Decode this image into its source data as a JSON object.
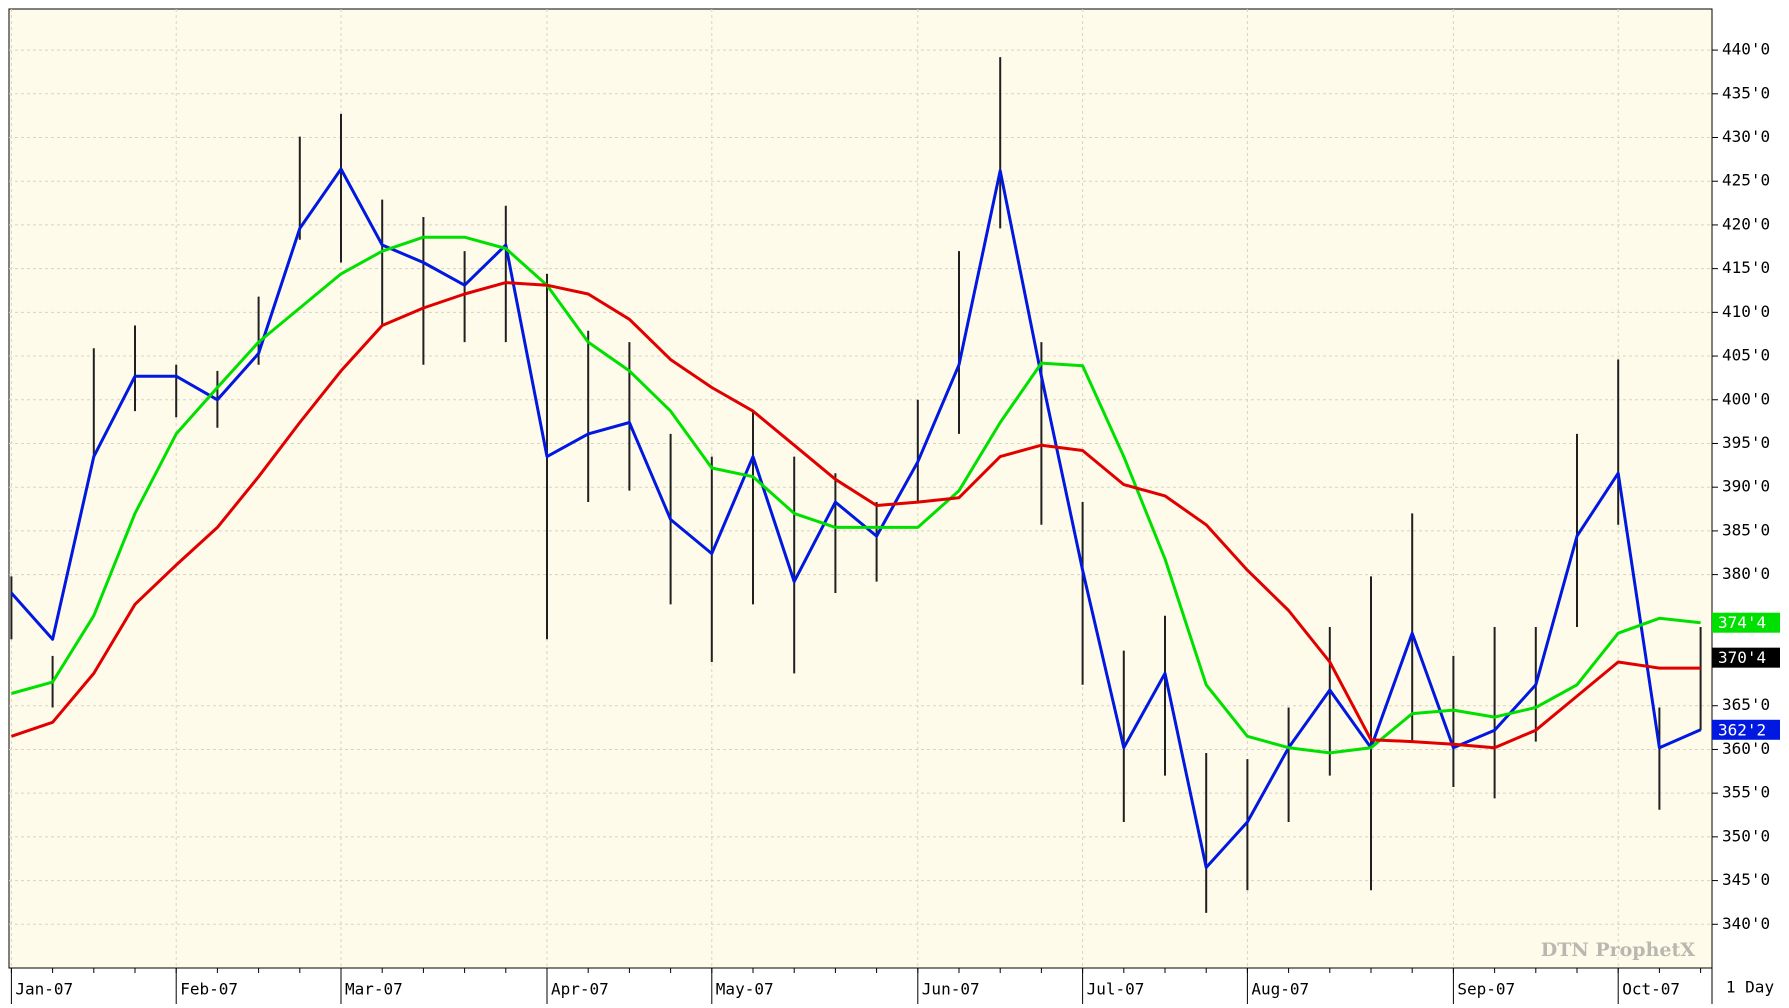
{
  "chart_data": {
    "type": "ohlc",
    "watermark": "DTN ProphetX",
    "interval": "1 Day",
    "categories": [
      "Jan-07",
      null,
      null,
      null,
      "Feb-07",
      null,
      null,
      null,
      "Mar-07",
      null,
      null,
      null,
      null,
      "Apr-07",
      null,
      null,
      null,
      "May-07",
      null,
      null,
      null,
      null,
      "Jun-07",
      null,
      null,
      null,
      "Jul-07",
      null,
      null,
      null,
      "Aug-07",
      null,
      null,
      null,
      null,
      "Sep-07",
      null,
      null,
      null,
      "Oct-07",
      null,
      null
    ],
    "high": [
      379.8,
      370.7,
      405.9,
      408.5,
      404,
      403.3,
      411.8,
      430.1,
      432.7,
      422.9,
      420.9,
      417,
      422.2,
      414.4,
      407.9,
      406.6,
      396.1,
      393.5,
      398.7,
      393.5,
      391.6,
      388.3,
      400,
      417,
      439.2,
      406.6,
      388.3,
      371.3,
      375.3,
      359.6,
      358.9,
      364.8,
      374,
      379.8,
      387,
      370.7,
      374,
      374,
      396.1,
      404.6,
      364.8,
      374
    ],
    "low": [
      372.6,
      364.8,
      393.5,
      398.7,
      398,
      396.8,
      404,
      418.3,
      415.7,
      408.5,
      404,
      406.6,
      406.6,
      372.6,
      388.3,
      389.6,
      376.6,
      370,
      376.6,
      368.7,
      377.9,
      379.2,
      388.3,
      396.1,
      419.6,
      385.7,
      367.4,
      351.7,
      357,
      341.3,
      343.9,
      351.7,
      357,
      343.9,
      360.9,
      355.7,
      354.4,
      360.9,
      374,
      385.7,
      353.1,
      362.2
    ],
    "bar_color": "#202020",
    "series": [
      {
        "name": "MA short",
        "color": "#0018e0",
        "values": [
          377.9,
          372.6,
          393.5,
          402.7,
          402.7,
          400,
          405.3,
          419.6,
          426.4,
          417.7,
          415.7,
          413.1,
          417.7,
          393.5,
          396.1,
          397.4,
          386.3,
          382.4,
          393.5,
          379.2,
          388.3,
          384.4,
          392.9,
          404,
          426.2,
          402.7,
          380.5,
          360.2,
          368.7,
          346.5,
          351.7,
          360.2,
          366.8,
          360.2,
          373.3,
          360.2,
          362.2,
          367.4,
          384.4,
          391.6,
          360.2,
          362.25
        ],
        "last_label": "362'2"
      },
      {
        "name": "MA medium",
        "color": "#00e000",
        "values": [
          366.4,
          367.7,
          375.3,
          387,
          396.1,
          401.4,
          406.6,
          410.5,
          414.4,
          417,
          418.6,
          418.6,
          417.3,
          413.1,
          406.6,
          403.3,
          398.7,
          392.2,
          391.2,
          387,
          385.4,
          385.4,
          385.4,
          389.6,
          397.4,
          404.2,
          403.9,
          393.5,
          381.8,
          367.4,
          361.5,
          360.2,
          359.6,
          360.2,
          364.1,
          364.5,
          363.7,
          364.8,
          367.4,
          373.3,
          375,
          374.5
        ],
        "last_label": "374'4"
      },
      {
        "name": "MA long",
        "color": "#e00000",
        "values": [
          361.5,
          363.1,
          368.7,
          376.6,
          381.1,
          385.4,
          391.2,
          397.4,
          403.3,
          408.5,
          410.5,
          412.1,
          413.4,
          413.1,
          412.1,
          409.2,
          404.6,
          401.4,
          398.7,
          394.8,
          390.9,
          387.9,
          388.3,
          388.8,
          393.5,
          394.8,
          394.2,
          390.3,
          389,
          385.7,
          380.5,
          375.9,
          370,
          361.1,
          360.9,
          360.6,
          360.2,
          362.2,
          366.1,
          370,
          369.3,
          369.3
        ]
      }
    ],
    "last_price": {
      "value": 370.5,
      "label": "370'4"
    },
    "ylim": [
      335,
      444.7
    ],
    "yticks": [
      {
        "value": 340,
        "label": "340'0"
      },
      {
        "value": 345,
        "label": "345'0"
      },
      {
        "value": 350,
        "label": "350'0"
      },
      {
        "value": 355,
        "label": "355'0"
      },
      {
        "value": 360,
        "label": "360'0"
      },
      {
        "value": 365,
        "label": "365'0"
      },
      {
        "value": 380,
        "label": "380'0"
      },
      {
        "value": 385,
        "label": "385'0"
      },
      {
        "value": 390,
        "label": "390'0"
      },
      {
        "value": 395,
        "label": "395'0"
      },
      {
        "value": 400,
        "label": "400'0"
      },
      {
        "value": 405,
        "label": "405'0"
      },
      {
        "value": 410,
        "label": "410'0"
      },
      {
        "value": 415,
        "label": "415'0"
      },
      {
        "value": 420,
        "label": "420'0"
      },
      {
        "value": 425,
        "label": "425'0"
      },
      {
        "value": 430,
        "label": "430'0"
      },
      {
        "value": 435,
        "label": "435'0"
      },
      {
        "value": 440,
        "label": "440'0"
      }
    ],
    "grid": true,
    "background": "#fffbea"
  }
}
